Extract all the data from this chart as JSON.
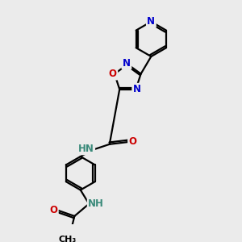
{
  "bg_color": "#ebebeb",
  "atom_color_N": "#0000cc",
  "atom_color_O": "#cc0000",
  "atom_color_H": "#3a8a7a",
  "line_color": "#000000",
  "line_width": 1.6,
  "font_size_atom": 8.5,
  "fig_size": [
    3.0,
    3.0
  ],
  "dpi": 100,
  "xlim": [
    0,
    10
  ],
  "ylim": [
    0,
    10
  ]
}
